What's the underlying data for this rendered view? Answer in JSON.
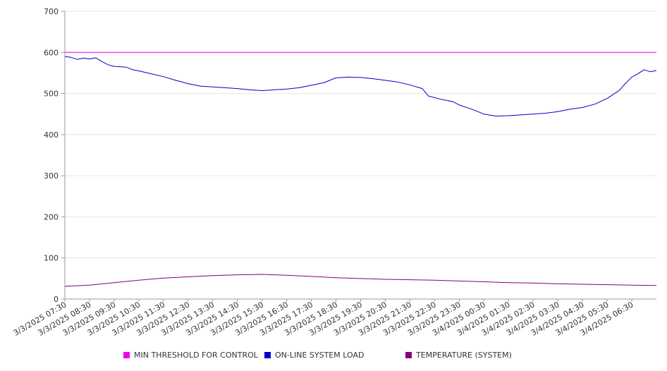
{
  "chart_data": {
    "type": "line",
    "ylim": [
      0,
      700
    ],
    "yticks": [
      0,
      100,
      200,
      300,
      400,
      500,
      600,
      700
    ],
    "xlim": [
      "3/3/2025 07:30",
      "3/4/2025 07:30"
    ],
    "xtick_labels": [
      "3/3/2025 07:30",
      "3/3/2025 08:30",
      "3/3/2025 09:30",
      "3/3/2025 10:30",
      "3/3/2025 11:30",
      "3/3/2025 12:30",
      "3/3/2025 13:30",
      "3/3/2025 14:30",
      "3/3/2025 15:30",
      "3/3/2025 16:30",
      "3/3/2025 17:30",
      "3/3/2025 18:30",
      "3/3/2025 19:30",
      "3/3/2025 20:30",
      "3/3/2025 21:30",
      "3/3/2025 22:30",
      "3/3/2025 23:30",
      "3/4/2025 00:30",
      "3/4/2025 01:30",
      "3/4/2025 02:30",
      "3/4/2025 03:30",
      "3/4/2025 04:30",
      "3/4/2025 05:30",
      "3/4/2025 06:30"
    ],
    "grid": true,
    "legend_position": "bottom",
    "series": [
      {
        "name": "MIN THRESHOLD FOR CONTROL",
        "color": "#ee00ee",
        "points": [
          [
            "3/3/2025 07:30",
            600
          ],
          [
            "3/4/2025 07:30",
            600
          ]
        ]
      },
      {
        "name": "ON-LINE SYSTEM LOAD",
        "color": "#0000cc",
        "points": [
          [
            "3/3/2025 07:30",
            590
          ],
          [
            "3/3/2025 07:45",
            588
          ],
          [
            "3/3/2025 08:00",
            583
          ],
          [
            "3/3/2025 08:15",
            586
          ],
          [
            "3/3/2025 08:30",
            584
          ],
          [
            "3/3/2025 08:45",
            587
          ],
          [
            "3/3/2025 09:00",
            578
          ],
          [
            "3/3/2025 09:15",
            570
          ],
          [
            "3/3/2025 09:30",
            566
          ],
          [
            "3/3/2025 10:00",
            564
          ],
          [
            "3/3/2025 10:15",
            558
          ],
          [
            "3/3/2025 10:30",
            555
          ],
          [
            "3/3/2025 11:00",
            548
          ],
          [
            "3/3/2025 11:30",
            541
          ],
          [
            "3/3/2025 12:00",
            532
          ],
          [
            "3/3/2025 12:30",
            524
          ],
          [
            "3/3/2025 13:00",
            518
          ],
          [
            "3/3/2025 13:30",
            516
          ],
          [
            "3/3/2025 14:00",
            514
          ],
          [
            "3/3/2025 14:30",
            512
          ],
          [
            "3/3/2025 15:00",
            509
          ],
          [
            "3/3/2025 15:30",
            507
          ],
          [
            "3/3/2025 16:00",
            509
          ],
          [
            "3/3/2025 16:30",
            511
          ],
          [
            "3/3/2025 17:00",
            514
          ],
          [
            "3/3/2025 17:30",
            520
          ],
          [
            "3/3/2025 18:00",
            526
          ],
          [
            "3/3/2025 18:30",
            538
          ],
          [
            "3/3/2025 19:00",
            540
          ],
          [
            "3/3/2025 19:30",
            539
          ],
          [
            "3/3/2025 20:00",
            536
          ],
          [
            "3/3/2025 20:30",
            532
          ],
          [
            "3/3/2025 21:00",
            528
          ],
          [
            "3/3/2025 21:30",
            521
          ],
          [
            "3/3/2025 22:00",
            512
          ],
          [
            "3/3/2025 22:15",
            494
          ],
          [
            "3/3/2025 22:45",
            486
          ],
          [
            "3/3/2025 23:15",
            480
          ],
          [
            "3/3/2025 23:30",
            472
          ],
          [
            "3/4/2025 00:00",
            462
          ],
          [
            "3/4/2025 00:30",
            450
          ],
          [
            "3/4/2025 01:00",
            445
          ],
          [
            "3/4/2025 01:30",
            446
          ],
          [
            "3/4/2025 02:00",
            448
          ],
          [
            "3/4/2025 02:30",
            450
          ],
          [
            "3/4/2025 03:00",
            452
          ],
          [
            "3/4/2025 03:30",
            456
          ],
          [
            "3/4/2025 04:00",
            462
          ],
          [
            "3/4/2025 04:30",
            466
          ],
          [
            "3/4/2025 05:00",
            474
          ],
          [
            "3/4/2025 05:30",
            488
          ],
          [
            "3/4/2025 06:00",
            508
          ],
          [
            "3/4/2025 06:15",
            525
          ],
          [
            "3/4/2025 06:30",
            540
          ],
          [
            "3/4/2025 06:45",
            548
          ],
          [
            "3/4/2025 07:00",
            558
          ],
          [
            "3/4/2025 07:15",
            553
          ],
          [
            "3/4/2025 07:30",
            556
          ]
        ]
      },
      {
        "name": "TEMPERATURE (SYSTEM)",
        "color": "#800080",
        "points": [
          [
            "3/3/2025 07:30",
            31
          ],
          [
            "3/3/2025 08:30",
            34
          ],
          [
            "3/3/2025 09:30",
            40
          ],
          [
            "3/3/2025 10:30",
            46
          ],
          [
            "3/3/2025 11:30",
            51
          ],
          [
            "3/3/2025 12:30",
            54
          ],
          [
            "3/3/2025 13:30",
            57
          ],
          [
            "3/3/2025 14:30",
            59
          ],
          [
            "3/3/2025 15:30",
            60
          ],
          [
            "3/3/2025 16:30",
            58
          ],
          [
            "3/3/2025 17:30",
            55
          ],
          [
            "3/3/2025 18:30",
            52
          ],
          [
            "3/3/2025 19:30",
            50
          ],
          [
            "3/3/2025 20:30",
            48
          ],
          [
            "3/3/2025 21:30",
            47
          ],
          [
            "3/3/2025 22:30",
            46
          ],
          [
            "3/3/2025 23:30",
            44
          ],
          [
            "3/4/2025 00:30",
            42
          ],
          [
            "3/4/2025 01:30",
            40
          ],
          [
            "3/4/2025 02:30",
            39
          ],
          [
            "3/4/2025 03:30",
            37
          ],
          [
            "3/4/2025 04:30",
            36
          ],
          [
            "3/4/2025 05:30",
            35
          ],
          [
            "3/4/2025 06:30",
            34
          ],
          [
            "3/4/2025 07:30",
            33
          ]
        ]
      }
    ]
  }
}
